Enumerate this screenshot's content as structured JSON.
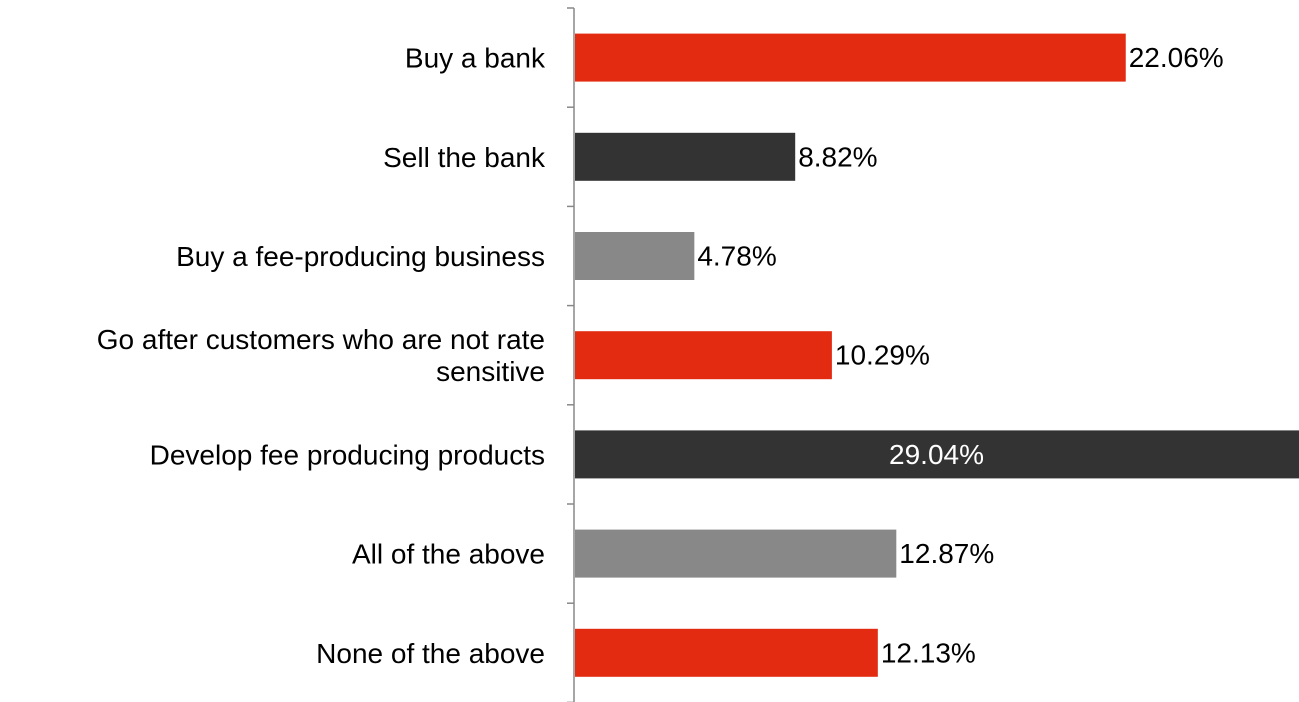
{
  "chart_data": {
    "type": "bar",
    "orientation": "horizontal",
    "categories": [
      "Buy a bank",
      "Sell the bank",
      "Buy a fee-producing business",
      "Go after customers who are not rate sensitive",
      "Develop fee producing products",
      "All of the above",
      "None of the above"
    ],
    "category_lines": [
      [
        "Buy a bank"
      ],
      [
        "Sell the bank"
      ],
      [
        "Buy a fee-producing business"
      ],
      [
        "Go after customers who are not rate",
        "sensitive"
      ],
      [
        "Develop fee producing products"
      ],
      [
        "All of the above"
      ],
      [
        "None of the above"
      ]
    ],
    "values": [
      22.06,
      8.82,
      4.78,
      10.29,
      29.04,
      12.87,
      12.13
    ],
    "value_labels": [
      "22.06%",
      "8.82%",
      "4.78%",
      "10.29%",
      "29.04%",
      "12.87%",
      "12.13%"
    ],
    "bar_colors": [
      "#e32b12",
      "#333333",
      "#888888",
      "#e32b12",
      "#333333",
      "#888888",
      "#e32b12"
    ],
    "label_inside": [
      false,
      false,
      false,
      false,
      true,
      false,
      false
    ],
    "xlim": [
      0,
      29.04
    ],
    "grid": false,
    "legend": "none",
    "title": "",
    "xlabel": "",
    "ylabel": ""
  }
}
